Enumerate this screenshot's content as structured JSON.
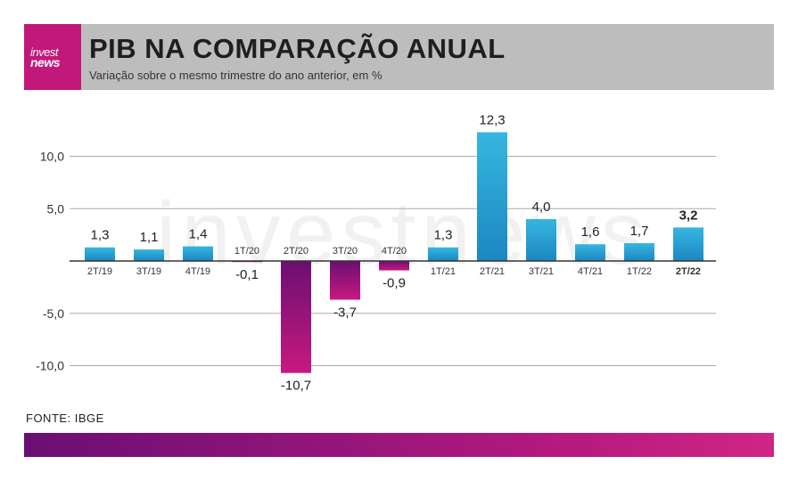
{
  "header": {
    "logo_top": "invest",
    "logo_bottom": "news",
    "title": "PIB NA COMPARAÇÃO ANUAL",
    "subtitle": "Variação sobre o mesmo trimestre do ano anterior, em %"
  },
  "watermark": "investnews",
  "footer": {
    "source": "FONTE: IBGE"
  },
  "colors": {
    "positive_top": "#36b6e0",
    "positive_bottom": "#1c87c1",
    "negative_top": "#6b0f72",
    "negative_bottom": "#c8197f",
    "grid": "#aaaaaa",
    "axis": "#333333",
    "header_bg": "#bdbdbd",
    "logo_bg": "#c2187a"
  },
  "chart_data": {
    "type": "bar",
    "title": "PIB NA COMPARAÇÃO ANUAL",
    "subtitle": "Variação sobre o mesmo trimestre do ano anterior, em %",
    "categories": [
      "2T/19",
      "3T/19",
      "4T/19",
      "1T/20",
      "2T/20",
      "3T/20",
      "4T/20",
      "1T/21",
      "2T/21",
      "3T/21",
      "4T/21",
      "1T/22",
      "2T/22"
    ],
    "values": [
      1.3,
      1.1,
      1.4,
      -0.1,
      -10.7,
      -3.7,
      -0.9,
      1.3,
      12.3,
      4.0,
      1.6,
      1.7,
      3.2
    ],
    "value_labels": [
      "1,3",
      "1,1",
      "1,4",
      "-0,1",
      "-10,7",
      "-3,7",
      "-0,9",
      "1,3",
      "12,3",
      "4,0",
      "1,6",
      "1,7",
      "3,2"
    ],
    "highlight_index": 12,
    "yticks": [
      10,
      5,
      -5,
      -10
    ],
    "ytick_labels": [
      "10,0",
      "5,0",
      "-5,0",
      "-10,0"
    ],
    "ylim": [
      -11,
      13
    ],
    "grid": true,
    "xlabel": "",
    "ylabel": ""
  }
}
